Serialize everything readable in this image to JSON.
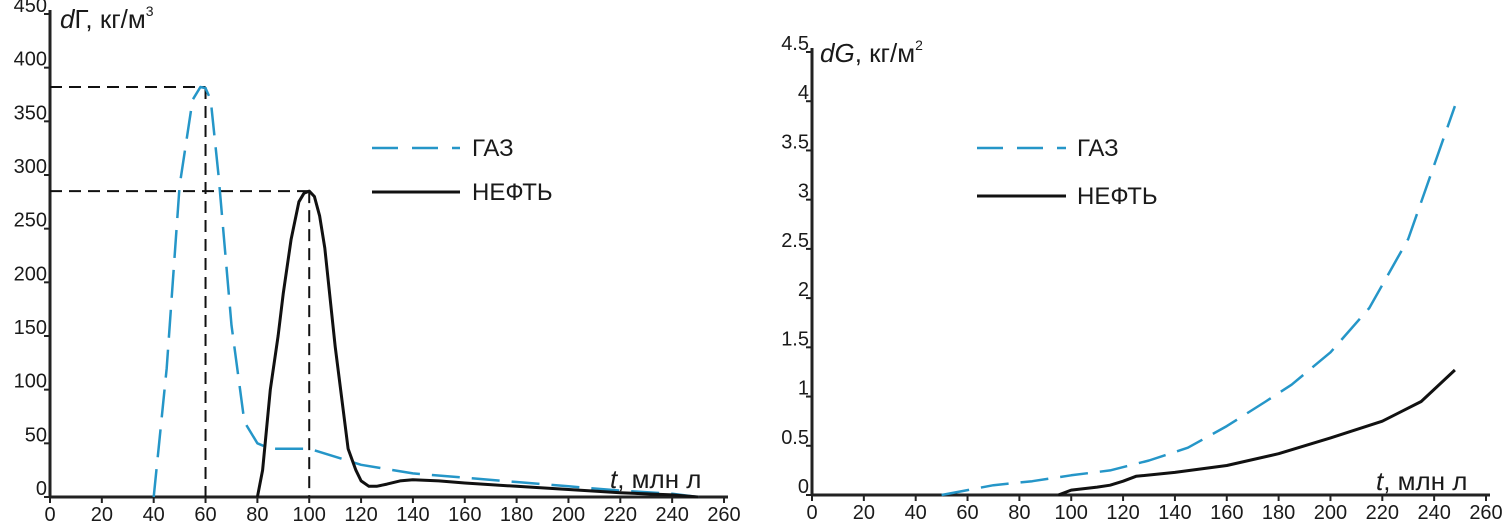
{
  "chart_data": [
    {
      "type": "line",
      "ylabel": "dГ, кг/м³",
      "ylabel_var": "d",
      "ylabel_sym": "Г",
      "ylabel_unit": ", кг/м",
      "ylabel_exp": "3",
      "xlabel_var": "t",
      "xlabel_unit": ", млн л",
      "xlim": [
        0,
        260
      ],
      "ylim": [
        0,
        450
      ],
      "x_ticks": [
        "0",
        "20",
        "40",
        "60",
        "80",
        "100",
        "120",
        "140",
        "160",
        "180",
        "200",
        "220",
        "240",
        "260"
      ],
      "y_ticks": [
        "0",
        "50",
        "100",
        "150",
        "200",
        "250",
        "300",
        "350",
        "400",
        "450"
      ],
      "grid": false,
      "legend_position": "top-right",
      "series": [
        {
          "name": "ГАЗ",
          "style": "dashed",
          "color": "#2596c8",
          "x": [
            40,
            45,
            50,
            55,
            58,
            60,
            62,
            65,
            70,
            75,
            80,
            85,
            90,
            95,
            100,
            120,
            140,
            160,
            180,
            200,
            220,
            240,
            250
          ],
          "y": [
            0,
            120,
            290,
            370,
            382,
            381,
            370,
            300,
            160,
            70,
            50,
            45,
            45,
            45,
            45,
            30,
            22,
            18,
            14,
            10,
            6,
            3,
            0
          ]
        },
        {
          "name": "НЕФТЬ",
          "style": "solid",
          "color": "#111111",
          "x": [
            80,
            82,
            85,
            88,
            90,
            93,
            96,
            98,
            100,
            102,
            104,
            106,
            110,
            115,
            118,
            120,
            123,
            126,
            130,
            135,
            140,
            150,
            160,
            180,
            200,
            220,
            240,
            250
          ],
          "y": [
            0,
            25,
            100,
            150,
            190,
            240,
            275,
            283,
            285,
            280,
            262,
            232,
            140,
            45,
            25,
            15,
            10,
            10,
            12,
            15,
            16,
            15,
            13,
            10,
            7,
            4,
            2,
            0
          ]
        }
      ],
      "annotations": [
        {
          "type": "reference-lines",
          "x": 60,
          "y": 382,
          "series": "ГАЗ"
        },
        {
          "type": "reference-lines",
          "x": 100,
          "y": 285,
          "series": "НЕФТЬ"
        }
      ]
    },
    {
      "type": "line",
      "ylabel": "dG, кг/м²",
      "ylabel_var": "d",
      "ylabel_sym": "G",
      "ylabel_unit": ", кг/м",
      "ylabel_exp": "2",
      "xlabel_var": "t",
      "xlabel_unit": ", млн л",
      "xlim": [
        0,
        260
      ],
      "ylim": [
        0,
        4.5
      ],
      "x_ticks": [
        "0",
        "20",
        "40",
        "60",
        "80",
        "100",
        "120",
        "140",
        "160",
        "180",
        "200",
        "220",
        "240",
        "260"
      ],
      "y_ticks": [
        "0",
        "0.5",
        "1",
        "1.5",
        "2",
        "2.5",
        "3",
        "3.5",
        "4",
        "4.5"
      ],
      "grid": false,
      "legend_position": "top-left",
      "series": [
        {
          "name": "ГАЗ",
          "style": "dashed",
          "color": "#2596c8",
          "x": [
            50,
            60,
            70,
            85,
            100,
            115,
            130,
            145,
            160,
            175,
            185,
            200,
            215,
            230,
            248
          ],
          "y": [
            0,
            0.05,
            0.1,
            0.14,
            0.2,
            0.25,
            0.35,
            0.48,
            0.7,
            0.95,
            1.12,
            1.45,
            1.9,
            2.6,
            3.95
          ]
        },
        {
          "name": "НЕФТЬ",
          "style": "solid",
          "color": "#111111",
          "x": [
            95,
            100,
            110,
            115,
            120,
            125,
            140,
            160,
            180,
            200,
            220,
            235,
            248
          ],
          "y": [
            0,
            0.05,
            0.08,
            0.1,
            0.14,
            0.19,
            0.23,
            0.3,
            0.42,
            0.58,
            0.75,
            0.95,
            1.27
          ]
        }
      ]
    }
  ]
}
